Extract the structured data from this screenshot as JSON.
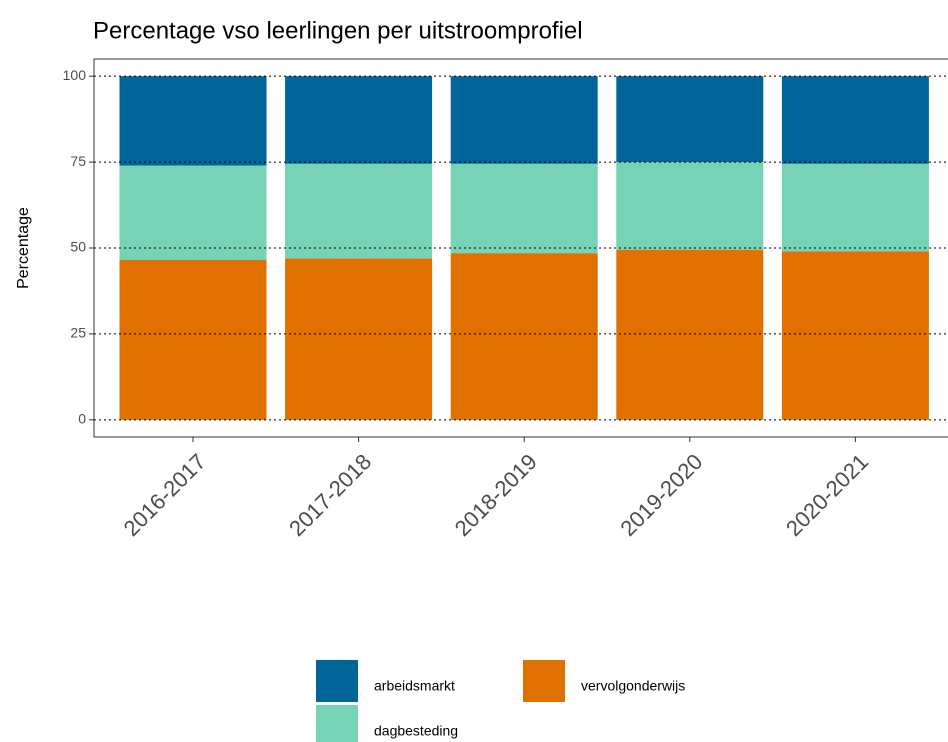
{
  "chart_data": {
    "type": "stacked-bar",
    "title": "Percentage vso leerlingen per uitstroomprofiel",
    "y_label": "Percentage",
    "categories": [
      "2016-2017",
      "2017-2018",
      "2018-2019",
      "2019-2020",
      "2020-2021"
    ],
    "series": [
      {
        "name": "vervolgonderwijs",
        "color": "#e07000",
        "values": [
          46.5,
          47,
          48.5,
          49.5,
          49
        ]
      },
      {
        "name": "dagbesteding",
        "color": "#76d3b6",
        "values": [
          27.5,
          27.5,
          26,
          25.5,
          25.5
        ]
      },
      {
        "name": "arbeidsmarkt",
        "color": "#006699",
        "values": [
          26,
          25.5,
          25.5,
          25,
          25.5
        ]
      }
    ],
    "ylim": [
      -5,
      105
    ],
    "yticks": [
      0,
      25,
      50,
      75,
      100
    ],
    "grid": true
  }
}
